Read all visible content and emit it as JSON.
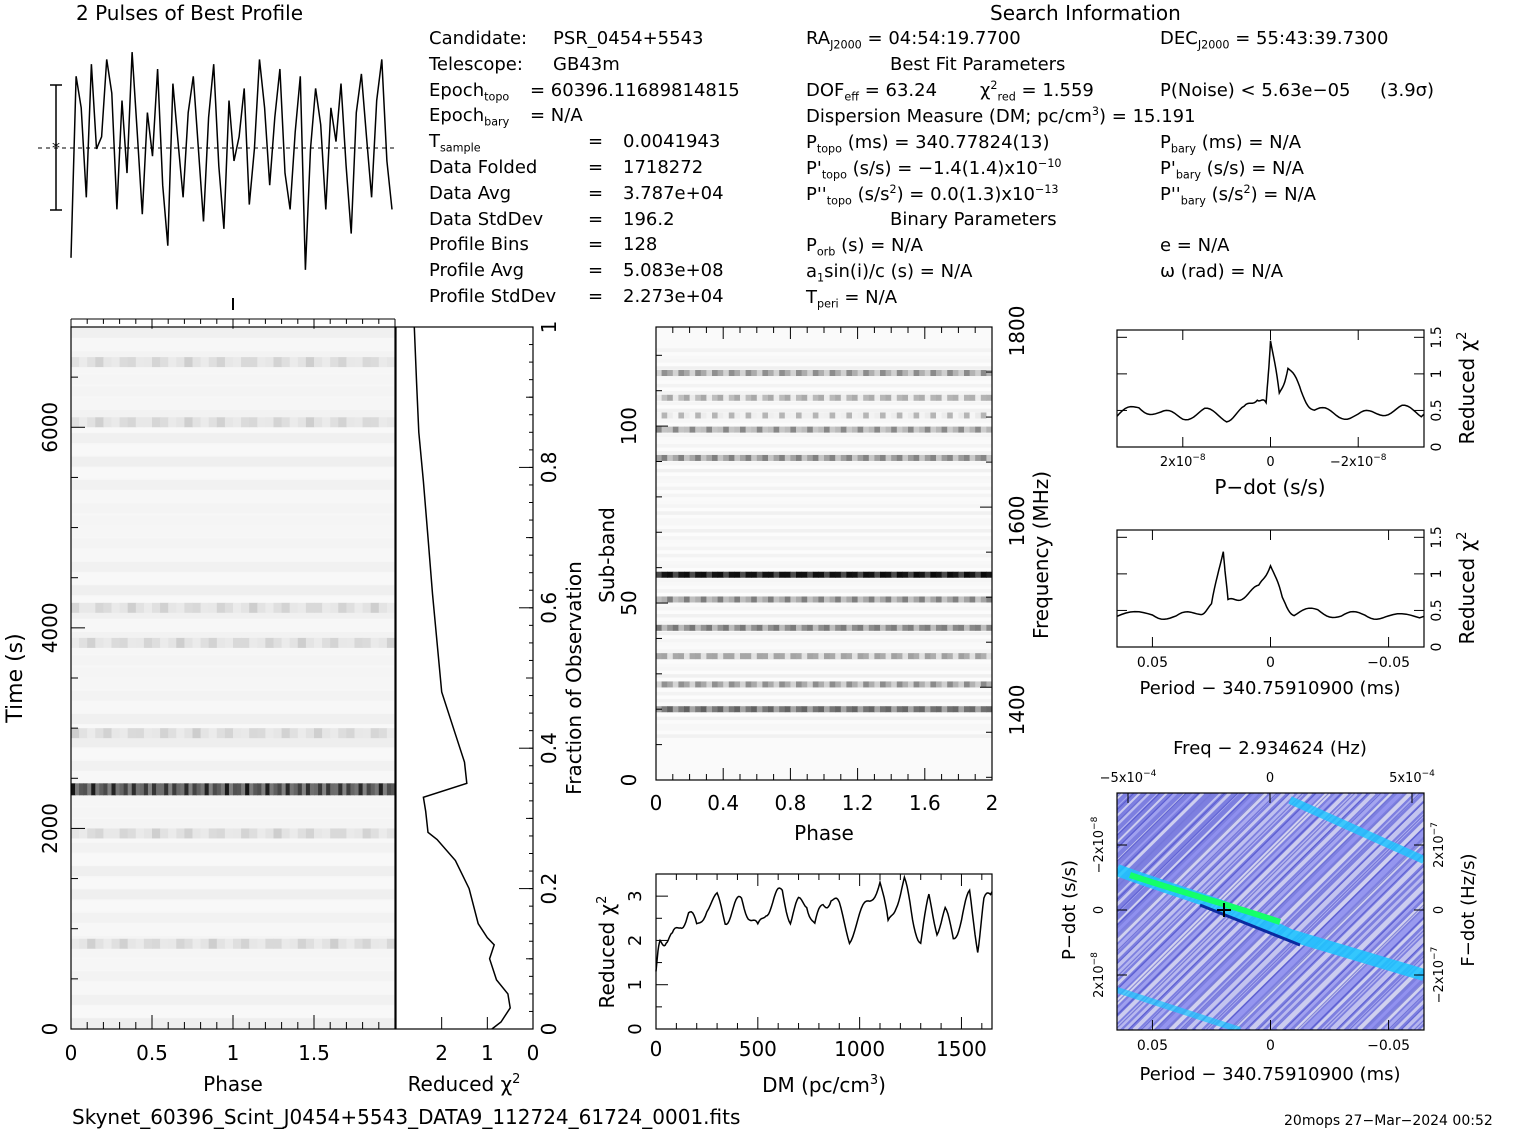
{
  "header": {
    "profile_title": "2 Pulses of Best Profile",
    "search_title": "Search Information",
    "best_fit_title": "Best Fit Parameters",
    "binary_title": "Binary Parameters"
  },
  "info_left": [
    {
      "label": "Candidate:",
      "value": "PSR_0454+5543"
    },
    {
      "label": "Telescope:",
      "value": "GB43m"
    },
    {
      "label": "Epoch",
      "sub": "topo",
      "value": "= 60396.11689814815"
    },
    {
      "label": "Epoch",
      "sub": "bary",
      "value": "= N/A"
    },
    {
      "label": "T",
      "sub": "sample",
      "value": "=",
      "value2": "0.0041943"
    },
    {
      "label": "Data Folded",
      "value": "=",
      "value2": "1718272"
    },
    {
      "label": "Data Avg",
      "value": "=",
      "value2": "3.787e+04"
    },
    {
      "label": "Data StdDev",
      "value": "=",
      "value2": "196.2"
    },
    {
      "label": "Profile Bins",
      "value": "=",
      "value2": "128"
    },
    {
      "label": "Profile Avg",
      "value": "=",
      "value2": "5.083e+08"
    },
    {
      "label": "Profile StdDev",
      "value": "=",
      "value2": "2.273e+04"
    }
  ],
  "search_info": {
    "ra": {
      "label": "RA",
      "sub": "J2000",
      "value": "= 04:54:19.7700"
    },
    "dec": {
      "label": "DEC",
      "sub": "J2000",
      "value": "= 55:43:39.7300"
    }
  },
  "best_fit": {
    "dof": {
      "label": "DOF",
      "sub": "eff",
      "value": "= 63.24"
    },
    "chi2": {
      "label": "χ",
      "sup": "2",
      "sub": "red",
      "value": "= 1.559"
    },
    "pnoise": "P(Noise) < 5.63e−05",
    "sigma": "(3.9σ)",
    "dm": {
      "label": "Dispersion Measure (DM; pc/cm",
      "sup": "3",
      "value": ") = 15.191"
    },
    "ptopo": {
      "label": "P",
      "sub": "topo",
      "value": "(ms) =  340.77824(13)"
    },
    "pbary": {
      "label": "P",
      "sub": "bary",
      "value": "(ms) = N/A"
    },
    "pdtopo": {
      "label": "P'",
      "sub": "topo",
      "value": "(s/s) = −1.4(1.4)x10",
      "sup": "−10"
    },
    "pdbary": {
      "label": "P'",
      "sub": "bary",
      "value": "(s/s) = N/A"
    },
    "pddtopo": {
      "label": "P''",
      "sub": "topo",
      "value": "(s/s",
      "sup": "2",
      "value2": ") = 0.0(1.3)x10",
      "sup2": "−13"
    },
    "pddbary": {
      "label": "P''",
      "sub": "bary",
      "value": "(s/s",
      "sup": "2",
      "value2": ") = N/A"
    }
  },
  "binary": {
    "porb": {
      "label": "P",
      "sub": "orb",
      "value": "(s) = N/A"
    },
    "e": {
      "label": "e = N/A"
    },
    "asini": {
      "label": "a",
      "sub": "1",
      "value": "sin(i)/c (s) = N/A"
    },
    "omega": {
      "label": "ω (rad) = N/A"
    },
    "tperi": {
      "label": "T",
      "sub": "peri",
      "value": "= N/A"
    }
  },
  "footer": {
    "filename": "Skynet_60396_Scint_J0454+5543_DATA9_112724_61724_0001.fits",
    "stamp": "20mops 27−Mar−2024 00:52"
  },
  "colors": {
    "line": "#000000",
    "heat_bg": "#7d7fe0",
    "heat_hot": "#14ff6a",
    "heat_cyan": "#19c6ff"
  },
  "chart_data": [
    {
      "id": "profile",
      "type": "line",
      "title": "2 Pulses of Best Profile",
      "x_range": [
        0,
        2
      ],
      "note": "profile shape read from figure; relative amplitude only",
      "values": [
        0.1,
        0.85,
        0.72,
        0.35,
        0.9,
        0.55,
        0.6,
        0.92,
        0.78,
        0.3,
        0.75,
        0.45,
        0.95,
        0.62,
        0.28,
        0.7,
        0.52,
        0.88,
        0.4,
        0.15,
        0.82,
        0.58,
        0.35,
        0.7,
        0.85,
        0.55,
        0.25,
        0.68,
        0.9,
        0.48,
        0.22,
        0.75,
        0.5,
        0.6,
        0.8,
        0.32,
        0.55,
        0.92,
        0.72,
        0.4,
        0.68,
        0.88,
        0.45,
        0.3,
        0.62,
        0.85,
        0.05,
        0.55,
        0.8,
        0.65,
        0.3,
        0.72,
        0.58,
        0.82,
        0.48,
        0.2,
        0.7,
        0.86,
        0.6,
        0.35,
        0.75,
        0.92,
        0.5,
        0.3
      ]
    },
    {
      "id": "time-phase",
      "type": "heatmap",
      "xlabel": "Phase",
      "ylabel": "Time (s)",
      "x_range": [
        0,
        2
      ],
      "y_range": [
        0,
        7000
      ],
      "x_ticks": [
        "0",
        "0.5",
        "1",
        "1.5"
      ],
      "y_ticks": [
        "0",
        "2000",
        "4000",
        "6000"
      ],
      "dark_rows_s": [
        2390
      ],
      "faint_rows_s": [
        850,
        1950,
        2950,
        3850,
        4200,
        6050,
        6650
      ]
    },
    {
      "id": "chi2-vs-fraction",
      "type": "line",
      "xlabel": "Reduced χ2",
      "ylabel": "Fraction of Observation",
      "x_range": [
        3,
        0
      ],
      "y_range": [
        0,
        1
      ],
      "x_ticks": [
        "2",
        "1",
        "0"
      ],
      "y_ticks": [
        "0",
        "0.2",
        "0.4",
        "0.6",
        "0.8",
        "1"
      ],
      "points": [
        [
          0.9,
          0
        ],
        [
          0.7,
          0.01
        ],
        [
          0.5,
          0.03
        ],
        [
          0.55,
          0.05
        ],
        [
          0.8,
          0.07
        ],
        [
          0.95,
          0.1
        ],
        [
          0.85,
          0.12
        ],
        [
          1.0,
          0.13
        ],
        [
          1.2,
          0.15
        ],
        [
          1.4,
          0.2
        ],
        [
          1.7,
          0.24
        ],
        [
          2.1,
          0.27
        ],
        [
          2.3,
          0.28
        ],
        [
          2.35,
          0.31
        ],
        [
          2.4,
          0.33
        ],
        [
          1.45,
          0.35
        ],
        [
          1.5,
          0.38
        ],
        [
          1.7,
          0.42
        ],
        [
          2.0,
          0.48
        ],
        [
          2.1,
          0.55
        ],
        [
          2.2,
          0.62
        ],
        [
          2.3,
          0.7
        ],
        [
          2.4,
          0.78
        ],
        [
          2.5,
          0.85
        ],
        [
          2.55,
          0.92
        ],
        [
          2.6,
          1.0
        ]
      ]
    },
    {
      "id": "subband-phase",
      "type": "heatmap",
      "xlabel": "Phase",
      "ylabel": "Sub-band",
      "y2label": "Frequency (MHz)",
      "x_range": [
        0,
        2
      ],
      "y_range": [
        0,
        128
      ],
      "x_ticks": [
        "0",
        "0.4",
        "0.8",
        "1.2",
        "1.6",
        "2"
      ],
      "y_ticks": [
        "0",
        "50",
        "100"
      ],
      "y2_ticks": [
        "1400",
        "1600",
        "1800"
      ],
      "bands": [
        [
          20,
          0.55
        ],
        [
          27,
          0.35
        ],
        [
          35,
          0.3
        ],
        [
          43,
          0.45
        ],
        [
          51,
          0.4
        ],
        [
          58,
          0.95
        ],
        [
          91,
          0.4
        ],
        [
          99,
          0.35
        ],
        [
          103,
          0.15
        ],
        [
          108,
          0.25
        ],
        [
          115,
          0.35
        ]
      ]
    },
    {
      "id": "dm-chi2",
      "type": "line",
      "xlabel": "DM (pc/cm3)",
      "ylabel": "Reduced χ2",
      "x_range": [
        0,
        1650
      ],
      "y_range": [
        0,
        3.5
      ],
      "x_ticks": [
        "0",
        "500",
        "1000",
        "1500"
      ],
      "y_ticks": [
        "0",
        "1",
        "2",
        "3"
      ],
      "points": [
        [
          0,
          1.3
        ],
        [
          20,
          1.9
        ],
        [
          50,
          2.1
        ],
        [
          80,
          2.0
        ],
        [
          120,
          2.4
        ],
        [
          160,
          2.6
        ],
        [
          200,
          2.3
        ],
        [
          250,
          2.8
        ],
        [
          300,
          2.9
        ],
        [
          340,
          2.5
        ],
        [
          380,
          2.7
        ],
        [
          420,
          2.9
        ],
        [
          460,
          2.6
        ],
        [
          500,
          2.2
        ],
        [
          540,
          2.7
        ],
        [
          580,
          2.9
        ],
        [
          620,
          3.1
        ],
        [
          660,
          2.5
        ],
        [
          700,
          2.8
        ],
        [
          740,
          2.9
        ],
        [
          780,
          2.3
        ],
        [
          820,
          2.8
        ],
        [
          860,
          3.0
        ],
        [
          900,
          2.7
        ],
        [
          950,
          2.1
        ],
        [
          1000,
          2.5
        ],
        [
          1050,
          2.9
        ],
        [
          1100,
          3.4
        ],
        [
          1140,
          2.3
        ],
        [
          1180,
          2.9
        ],
        [
          1220,
          3.3
        ],
        [
          1260,
          2.5
        ],
        [
          1300,
          2.0
        ],
        [
          1340,
          2.9
        ],
        [
          1380,
          2.3
        ],
        [
          1420,
          2.6
        ],
        [
          1460,
          2.1
        ],
        [
          1500,
          2.5
        ],
        [
          1540,
          3.0
        ],
        [
          1580,
          1.9
        ],
        [
          1610,
          2.8
        ],
        [
          1650,
          3.1
        ]
      ]
    },
    {
      "id": "pdot-chi2",
      "type": "line",
      "xlabel": "P−dot (s/s)",
      "ylabel": "Reduced χ2",
      "x_range": [
        3.5e-08,
        -3.5e-08
      ],
      "y_range": [
        0,
        1.6
      ],
      "x_ticks": [
        "2x10",
        "0",
        "−2x10"
      ],
      "x_tick_exp": "−8",
      "y_ticks": [
        "0",
        "0.5",
        "1",
        "1.5"
      ],
      "points": [
        [
          3.5e-08,
          0.42
        ],
        [
          3e-08,
          0.55
        ],
        [
          2.5e-08,
          0.45
        ],
        [
          2e-08,
          0.42
        ],
        [
          1.5e-08,
          0.48
        ],
        [
          1e-08,
          0.4
        ],
        [
          6e-09,
          0.5
        ],
        [
          3e-09,
          0.7
        ],
        [
          1e-09,
          0.55
        ],
        [
          0.0,
          1.5
        ],
        [
          -2e-09,
          0.7
        ],
        [
          -4e-09,
          1.1
        ],
        [
          -7e-09,
          0.75
        ],
        [
          -1e-08,
          0.5
        ],
        [
          -1.5e-08,
          0.45
        ],
        [
          -2e-08,
          0.42
        ],
        [
          -2.5e-08,
          0.48
        ],
        [
          -3e-08,
          0.52
        ],
        [
          -3.5e-08,
          0.45
        ]
      ]
    },
    {
      "id": "period-chi2",
      "type": "line",
      "xlabel": "Period − 340.75910900 (ms)",
      "ylabel": "Reduced χ2",
      "x_range": [
        0.065,
        -0.065
      ],
      "y_range": [
        0,
        1.6
      ],
      "x_ticks": [
        "0.05",
        "0",
        "−0.05"
      ],
      "y_ticks": [
        "0",
        "0.5",
        "1",
        "1.5"
      ],
      "points": [
        [
          0.065,
          0.42
        ],
        [
          0.05,
          0.45
        ],
        [
          0.04,
          0.4
        ],
        [
          0.03,
          0.48
        ],
        [
          0.025,
          0.55
        ],
        [
          0.02,
          1.35
        ],
        [
          0.018,
          0.6
        ],
        [
          0.012,
          0.7
        ],
        [
          0.005,
          0.8
        ],
        [
          0.0,
          1.15
        ],
        [
          -0.005,
          0.65
        ],
        [
          -0.01,
          0.45
        ],
        [
          -0.02,
          0.5
        ],
        [
          -0.03,
          0.42
        ],
        [
          -0.04,
          0.45
        ],
        [
          -0.05,
          0.4
        ],
        [
          -0.065,
          0.42
        ]
      ]
    },
    {
      "id": "period-pdot-heatmap",
      "type": "heatmap",
      "title": "Freq − 2.934624 (Hz)",
      "xlabel": "Period − 340.75910900 (ms)",
      "ylabel": "P−dot (s/s)",
      "y2label": "F−dot (Hz/s)",
      "x_ticks": [
        "0.05",
        "0",
        "−0.05"
      ],
      "top_ticks": [
        "−5x10",
        "0",
        "5x10"
      ],
      "top_tick_exp": "−4",
      "y_ticks": [
        "−2x10",
        "0",
        "2x10"
      ],
      "y_tick_exp": "−8",
      "y2_ticks": [
        "2x10",
        "0",
        "−2x10"
      ],
      "y2_tick_exp": "−7"
    }
  ]
}
